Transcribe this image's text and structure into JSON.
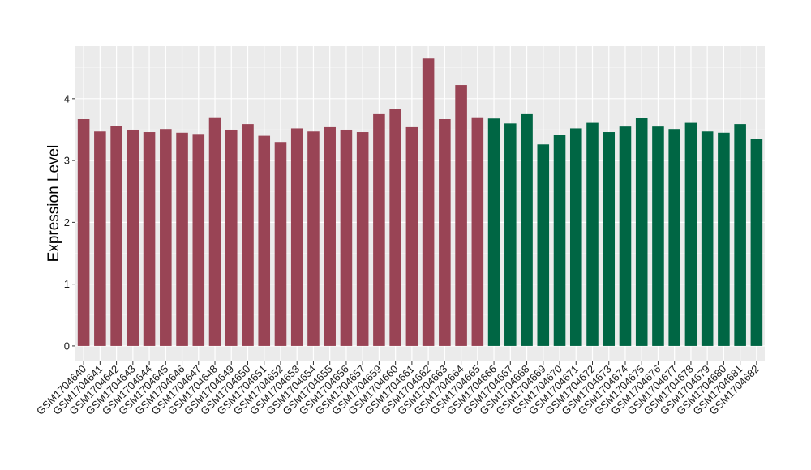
{
  "chart_data": {
    "type": "bar",
    "title": "",
    "xlabel": "",
    "ylabel": "Expression Level",
    "ylim": [
      -0.25,
      4.85
    ],
    "yticks": [
      0,
      1,
      2,
      3,
      4
    ],
    "grid": true,
    "legend": "none",
    "background_color": "#ebebeb",
    "categories": [
      "GSM1704640",
      "GSM1704641",
      "GSM1704642",
      "GSM1704643",
      "GSM1704644",
      "GSM1704645",
      "GSM1704646",
      "GSM1704647",
      "GSM1704648",
      "GSM1704649",
      "GSM1704650",
      "GSM1704651",
      "GSM1704652",
      "GSM1704653",
      "GSM1704654",
      "GSM1704655",
      "GSM1704656",
      "GSM1704657",
      "GSM1704659",
      "GSM1704660",
      "GSM1704661",
      "GSM1704662",
      "GSM1704663",
      "GSM1704664",
      "GSM1704665",
      "GSM1704666",
      "GSM1704667",
      "GSM1704668",
      "GSM1704669",
      "GSM1704670",
      "GSM1704671",
      "GSM1704672",
      "GSM1704673",
      "GSM1704674",
      "GSM1704675",
      "GSM1704676",
      "GSM1704677",
      "GSM1704678",
      "GSM1704679",
      "GSM1704680",
      "GSM1704681",
      "GSM1704682"
    ],
    "values": [
      3.67,
      3.47,
      3.56,
      3.5,
      3.46,
      3.51,
      3.45,
      3.43,
      3.7,
      3.5,
      3.59,
      3.4,
      3.3,
      3.52,
      3.47,
      3.54,
      3.5,
      3.46,
      3.75,
      3.84,
      3.54,
      4.65,
      3.67,
      4.22,
      3.7,
      3.68,
      3.6,
      3.75,
      3.26,
      3.42,
      3.52,
      3.61,
      3.46,
      3.55,
      3.69,
      3.55,
      3.51,
      3.61,
      3.47,
      3.45,
      3.59,
      3.35
    ],
    "group_colors": [
      "#994455",
      "#006644"
    ],
    "groups": [
      0,
      0,
      0,
      0,
      0,
      0,
      0,
      0,
      0,
      0,
      0,
      0,
      0,
      0,
      0,
      0,
      0,
      0,
      0,
      0,
      0,
      0,
      0,
      0,
      0,
      1,
      1,
      1,
      1,
      1,
      1,
      1,
      1,
      1,
      1,
      1,
      1,
      1,
      1,
      1,
      1,
      1
    ]
  }
}
